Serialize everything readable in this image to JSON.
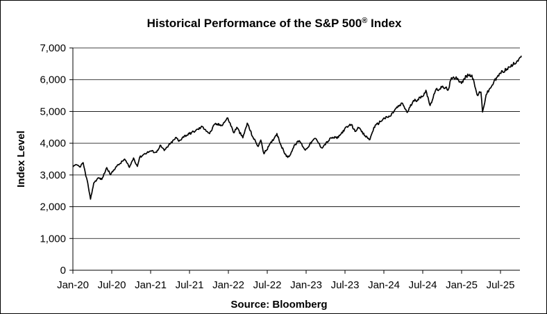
{
  "chart_data": {
    "type": "line",
    "title": "Historical Performance of the S&P 500",
    "title_mark": "®",
    "title_suffix": " Index",
    "ylabel": "Index Level",
    "source": "Source: Bloomberg",
    "ylim": [
      0,
      7000
    ],
    "xlim": [
      "2020-01",
      "2025-10"
    ],
    "y_ticks": [
      "0",
      "1,000",
      "2,000",
      "3,000",
      "4,000",
      "5,000",
      "6,000",
      "7,000"
    ],
    "x_ticks": [
      "Jan-20",
      "Jul-20",
      "Jan-21",
      "Jul-21",
      "Jan-22",
      "Jul-22",
      "Jan-23",
      "Jul-23",
      "Jan-24",
      "Jul-24",
      "Jan-25",
      "Jul-25"
    ],
    "grid": true,
    "line_color": "#000000",
    "series": [
      {
        "x": [
          "2020-01-02",
          "2020-01-20",
          "2020-02-03",
          "2020-02-19",
          "2020-03-01",
          "2020-03-10",
          "2020-03-23",
          "2020-04-08",
          "2020-04-30",
          "2020-05-15",
          "2020-06-08",
          "2020-06-26",
          "2020-07-20",
          "2020-08-10",
          "2020-08-31",
          "2020-09-23",
          "2020-10-12",
          "2020-10-30",
          "2020-11-10",
          "2020-12-01",
          "2020-12-31",
          "2021-01-29",
          "2021-02-15",
          "2021-03-04",
          "2021-03-31",
          "2021-04-30",
          "2021-05-12",
          "2021-06-01",
          "2021-06-30",
          "2021-07-30",
          "2021-08-31",
          "2021-09-15",
          "2021-10-04",
          "2021-10-29",
          "2021-11-30",
          "2021-12-29",
          "2022-01-27",
          "2022-02-10",
          "2022-03-08",
          "2022-03-29",
          "2022-04-26",
          "2022-05-20",
          "2022-06-01",
          "2022-06-16",
          "2022-07-08",
          "2022-08-16",
          "2022-09-06",
          "2022-09-30",
          "2022-10-12",
          "2022-11-10",
          "2022-11-30",
          "2022-12-28",
          "2023-01-31",
          "2023-02-15",
          "2023-03-13",
          "2023-04-28",
          "2023-05-31",
          "2023-06-30",
          "2023-07-31",
          "2023-08-18",
          "2023-09-01",
          "2023-10-04",
          "2023-10-27",
          "2023-11-15",
          "2023-12-29",
          "2024-01-31",
          "2024-02-28",
          "2024-03-28",
          "2024-04-19",
          "2024-05-15",
          "2024-06-28",
          "2024-07-16",
          "2024-08-05",
          "2024-08-30",
          "2024-09-30",
          "2024-10-31",
          "2024-11-11",
          "2024-12-06",
          "2024-12-31",
          "2025-01-23",
          "2025-02-19",
          "2025-03-13",
          "2025-03-31",
          "2025-04-08",
          "2025-04-25",
          "2025-05-30",
          "2025-06-30",
          "2025-07-31",
          "2025-08-29",
          "2025-09-30",
          "2025-10-08"
        ],
        "values": [
          3258,
          3320,
          3250,
          3386,
          2960,
          2750,
          2237,
          2750,
          2912,
          2860,
          3230,
          3010,
          3250,
          3360,
          3500,
          3240,
          3535,
          3270,
          3550,
          3660,
          3756,
          3714,
          3935,
          3770,
          3973,
          4180,
          4060,
          4200,
          4297,
          4395,
          4522,
          4430,
          4300,
          4605,
          4567,
          4793,
          4326,
          4500,
          4170,
          4630,
          4175,
          3900,
          4100,
          3666,
          3900,
          4305,
          3910,
          3585,
          3577,
          3960,
          4080,
          3783,
          4076,
          4150,
          3855,
          4170,
          4180,
          4450,
          4588,
          4370,
          4500,
          4230,
          4117,
          4500,
          4770,
          4850,
          5100,
          5254,
          4967,
          5300,
          5460,
          5667,
          5186,
          5648,
          5762,
          5705,
          6001,
          6090,
          5882,
          6118,
          6144,
          5521,
          5612,
          4983,
          5525,
          5912,
          6205,
          6339,
          6460,
          6688,
          6753
        ]
      }
    ]
  }
}
